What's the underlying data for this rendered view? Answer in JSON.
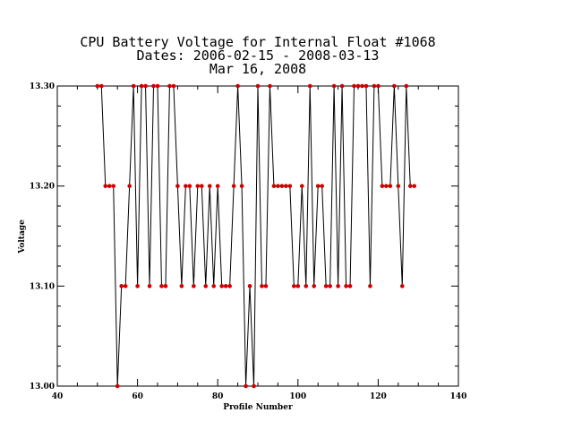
{
  "chart_data": {
    "type": "line",
    "title_lines": [
      "CPU Battery Voltage for Internal Float #1068",
      "Dates:  2006-02-15 -  2008-03-13",
      "Mar 16, 2008"
    ],
    "xlabel": "Profile Number",
    "ylabel": "Voltage",
    "xlim": [
      40,
      140
    ],
    "ylim": [
      13.0,
      13.3
    ],
    "x_major_ticks": [
      40,
      60,
      80,
      100,
      120,
      140
    ],
    "x_tick_labels": [
      "40",
      "60",
      "80",
      "100",
      "120",
      "140"
    ],
    "x_minor_step": 5,
    "y_major_ticks": [
      13.0,
      13.1,
      13.2,
      13.3
    ],
    "y_tick_labels": [
      "13.00",
      "13.10",
      "13.20",
      "13.30"
    ],
    "y_minor_step": 0.02,
    "grid": false,
    "marker_color": "#cc0000",
    "line_color": "#000000",
    "series": [
      {
        "x": [
          50,
          51,
          52,
          53,
          54,
          55,
          56,
          57,
          58,
          59,
          60,
          61,
          62,
          63,
          64,
          65,
          66,
          67,
          68,
          69,
          70,
          71,
          72,
          73,
          74,
          75,
          76,
          77,
          78,
          79,
          80,
          81,
          82,
          83,
          84,
          85,
          86,
          87,
          88,
          89,
          90,
          91,
          92,
          93,
          94,
          95,
          96,
          97,
          98,
          99,
          100,
          101,
          102,
          103,
          104,
          105,
          106,
          107,
          108,
          109,
          110,
          111,
          112,
          113,
          114,
          115,
          116,
          117,
          118,
          119,
          120,
          121,
          122,
          123,
          124,
          125,
          126,
          127,
          128,
          129
        ],
        "y": [
          13.3,
          13.3,
          13.2,
          13.2,
          13.2,
          13.0,
          13.1,
          13.1,
          13.2,
          13.3,
          13.1,
          13.3,
          13.3,
          13.1,
          13.3,
          13.3,
          13.1,
          13.1,
          13.3,
          13.3,
          13.2,
          13.1,
          13.2,
          13.2,
          13.1,
          13.2,
          13.2,
          13.1,
          13.2,
          13.1,
          13.2,
          13.1,
          13.1,
          13.1,
          13.2,
          13.3,
          13.2,
          13.0,
          13.1,
          13.0,
          13.3,
          13.1,
          13.1,
          13.3,
          13.2,
          13.2,
          13.2,
          13.2,
          13.2,
          13.1,
          13.1,
          13.2,
          13.1,
          13.3,
          13.1,
          13.2,
          13.2,
          13.1,
          13.1,
          13.3,
          13.1,
          13.3,
          13.1,
          13.1,
          13.3,
          13.3,
          13.3,
          13.3,
          13.1,
          13.3,
          13.3,
          13.2,
          13.2,
          13.2,
          13.3,
          13.2,
          13.1,
          13.3,
          13.2,
          13.2
        ]
      }
    ]
  }
}
